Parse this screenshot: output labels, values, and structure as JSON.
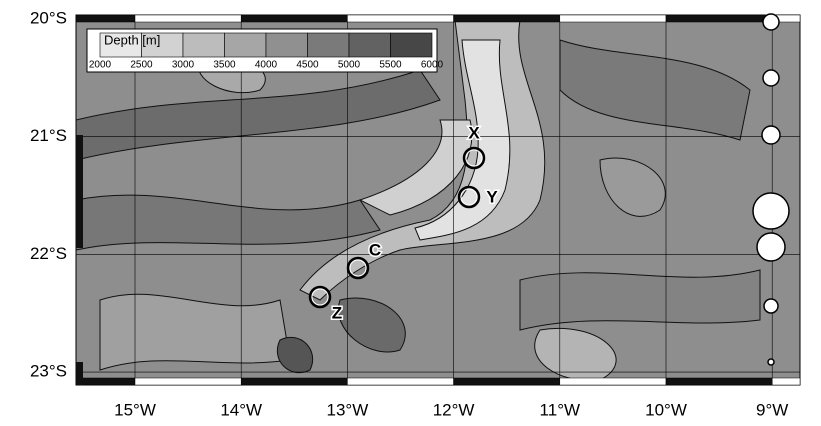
{
  "map": {
    "lon_ticks": [
      {
        "value": -15,
        "label": "15°W"
      },
      {
        "value": -14,
        "label": "14°W"
      },
      {
        "value": -13,
        "label": "13°W"
      },
      {
        "value": -12,
        "label": "12°W"
      },
      {
        "value": -11,
        "label": "11°W"
      },
      {
        "value": -10,
        "label": "10°W"
      },
      {
        "value": -9,
        "label": "9°W"
      }
    ],
    "lat_ticks": [
      {
        "value": -20,
        "label": "20°S"
      },
      {
        "value": -21,
        "label": "21°S"
      },
      {
        "value": -22,
        "label": "22°S"
      },
      {
        "value": -23,
        "label": "23°S"
      }
    ],
    "legend": {
      "title": "Depth [m]",
      "levels": [
        2000,
        2500,
        3000,
        3500,
        4000,
        4500,
        5000,
        5500,
        6000
      ],
      "colors": [
        "#e8e8e8",
        "#d2d2d2",
        "#bcbcbc",
        "#a6a6a6",
        "#909090",
        "#7a7a7a",
        "#626262",
        "#474747"
      ]
    },
    "stations": [
      "X",
      "Y",
      "C",
      "Z"
    ]
  }
}
